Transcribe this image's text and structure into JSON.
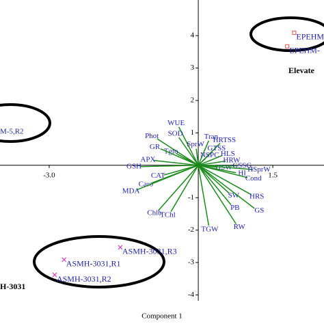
{
  "chart_data": {
    "type": "biplot",
    "x_label": "Component 1",
    "xlim": [
      -3.99,
      2.53
    ],
    "ylim": [
      -4.18,
      5.1
    ],
    "xticks": [
      {
        "value": -3,
        "label": "-3.0"
      },
      1.5
    ],
    "yticks": [
      4,
      3,
      2,
      1,
      -1,
      -2,
      -3,
      -4
    ],
    "series": [
      {
        "name": "EPEHM",
        "color": "#e05050",
        "marker": "square",
        "labels": [
          "EPEHM-",
          "EPEHM-"
        ],
        "x": [
          1.93,
          1.79
        ],
        "y": [
          4.09,
          3.67
        ]
      },
      {
        "name": "ASMH-3031",
        "color": "#d040c0",
        "marker": "cross",
        "labels": [
          "ASMH-3031,R3",
          "ASMH-3031,R1",
          "ASMH-3031,R2"
        ],
        "x": [
          -1.57,
          -2.7,
          -2.89
        ],
        "y": [
          -2.53,
          -2.91,
          -3.38
        ]
      }
    ],
    "loadings": {
      "color": "#1a8a1a",
      "labels": [
        "WUE",
        "SOD",
        "Phot",
        "Tran",
        "HRTSS",
        "SprW",
        "GTSS",
        "HLS",
        "HRW",
        "NSPC",
        "Tgto",
        "GR",
        "APX",
        "GSH",
        "HSW",
        "GSSG",
        "HSprW",
        "HI",
        "Cond",
        "HRS",
        "SW",
        "PB",
        "GS",
        "RW",
        "TGW",
        "CAT",
        "Caro",
        "MDA",
        "Chlb",
        "TChl"
      ],
      "x": [
        -0.39,
        -0.39,
        -0.83,
        0.21,
        0.44,
        -0.04,
        0.28,
        0.48,
        0.55,
        0.14,
        -0.44,
        -0.76,
        -0.89,
        -1.17,
        0.39,
        0.76,
        1.1,
        0.76,
        0.99,
        1.07,
        0.62,
        0.66,
        1.13,
        0.76,
        0.21,
        -0.69,
        -0.94,
        -1.24,
        -0.8,
        -0.55
      ],
      "y": [
        1.18,
        0.86,
        0.82,
        0.76,
        0.68,
        0.51,
        0.42,
        0.3,
        0.13,
        0.21,
        0.36,
        0.51,
        0.15,
        -0.04,
        -0.06,
        -0.02,
        -0.13,
        -0.23,
        -0.38,
        -0.91,
        -0.86,
        -1.22,
        -1.33,
        -1.81,
        -1.86,
        -0.3,
        -0.55,
        -0.76,
        -1.39,
        -1.43
      ]
    },
    "annotations": [
      "Elevate",
      "H-3031",
      "M-5,R2"
    ]
  }
}
